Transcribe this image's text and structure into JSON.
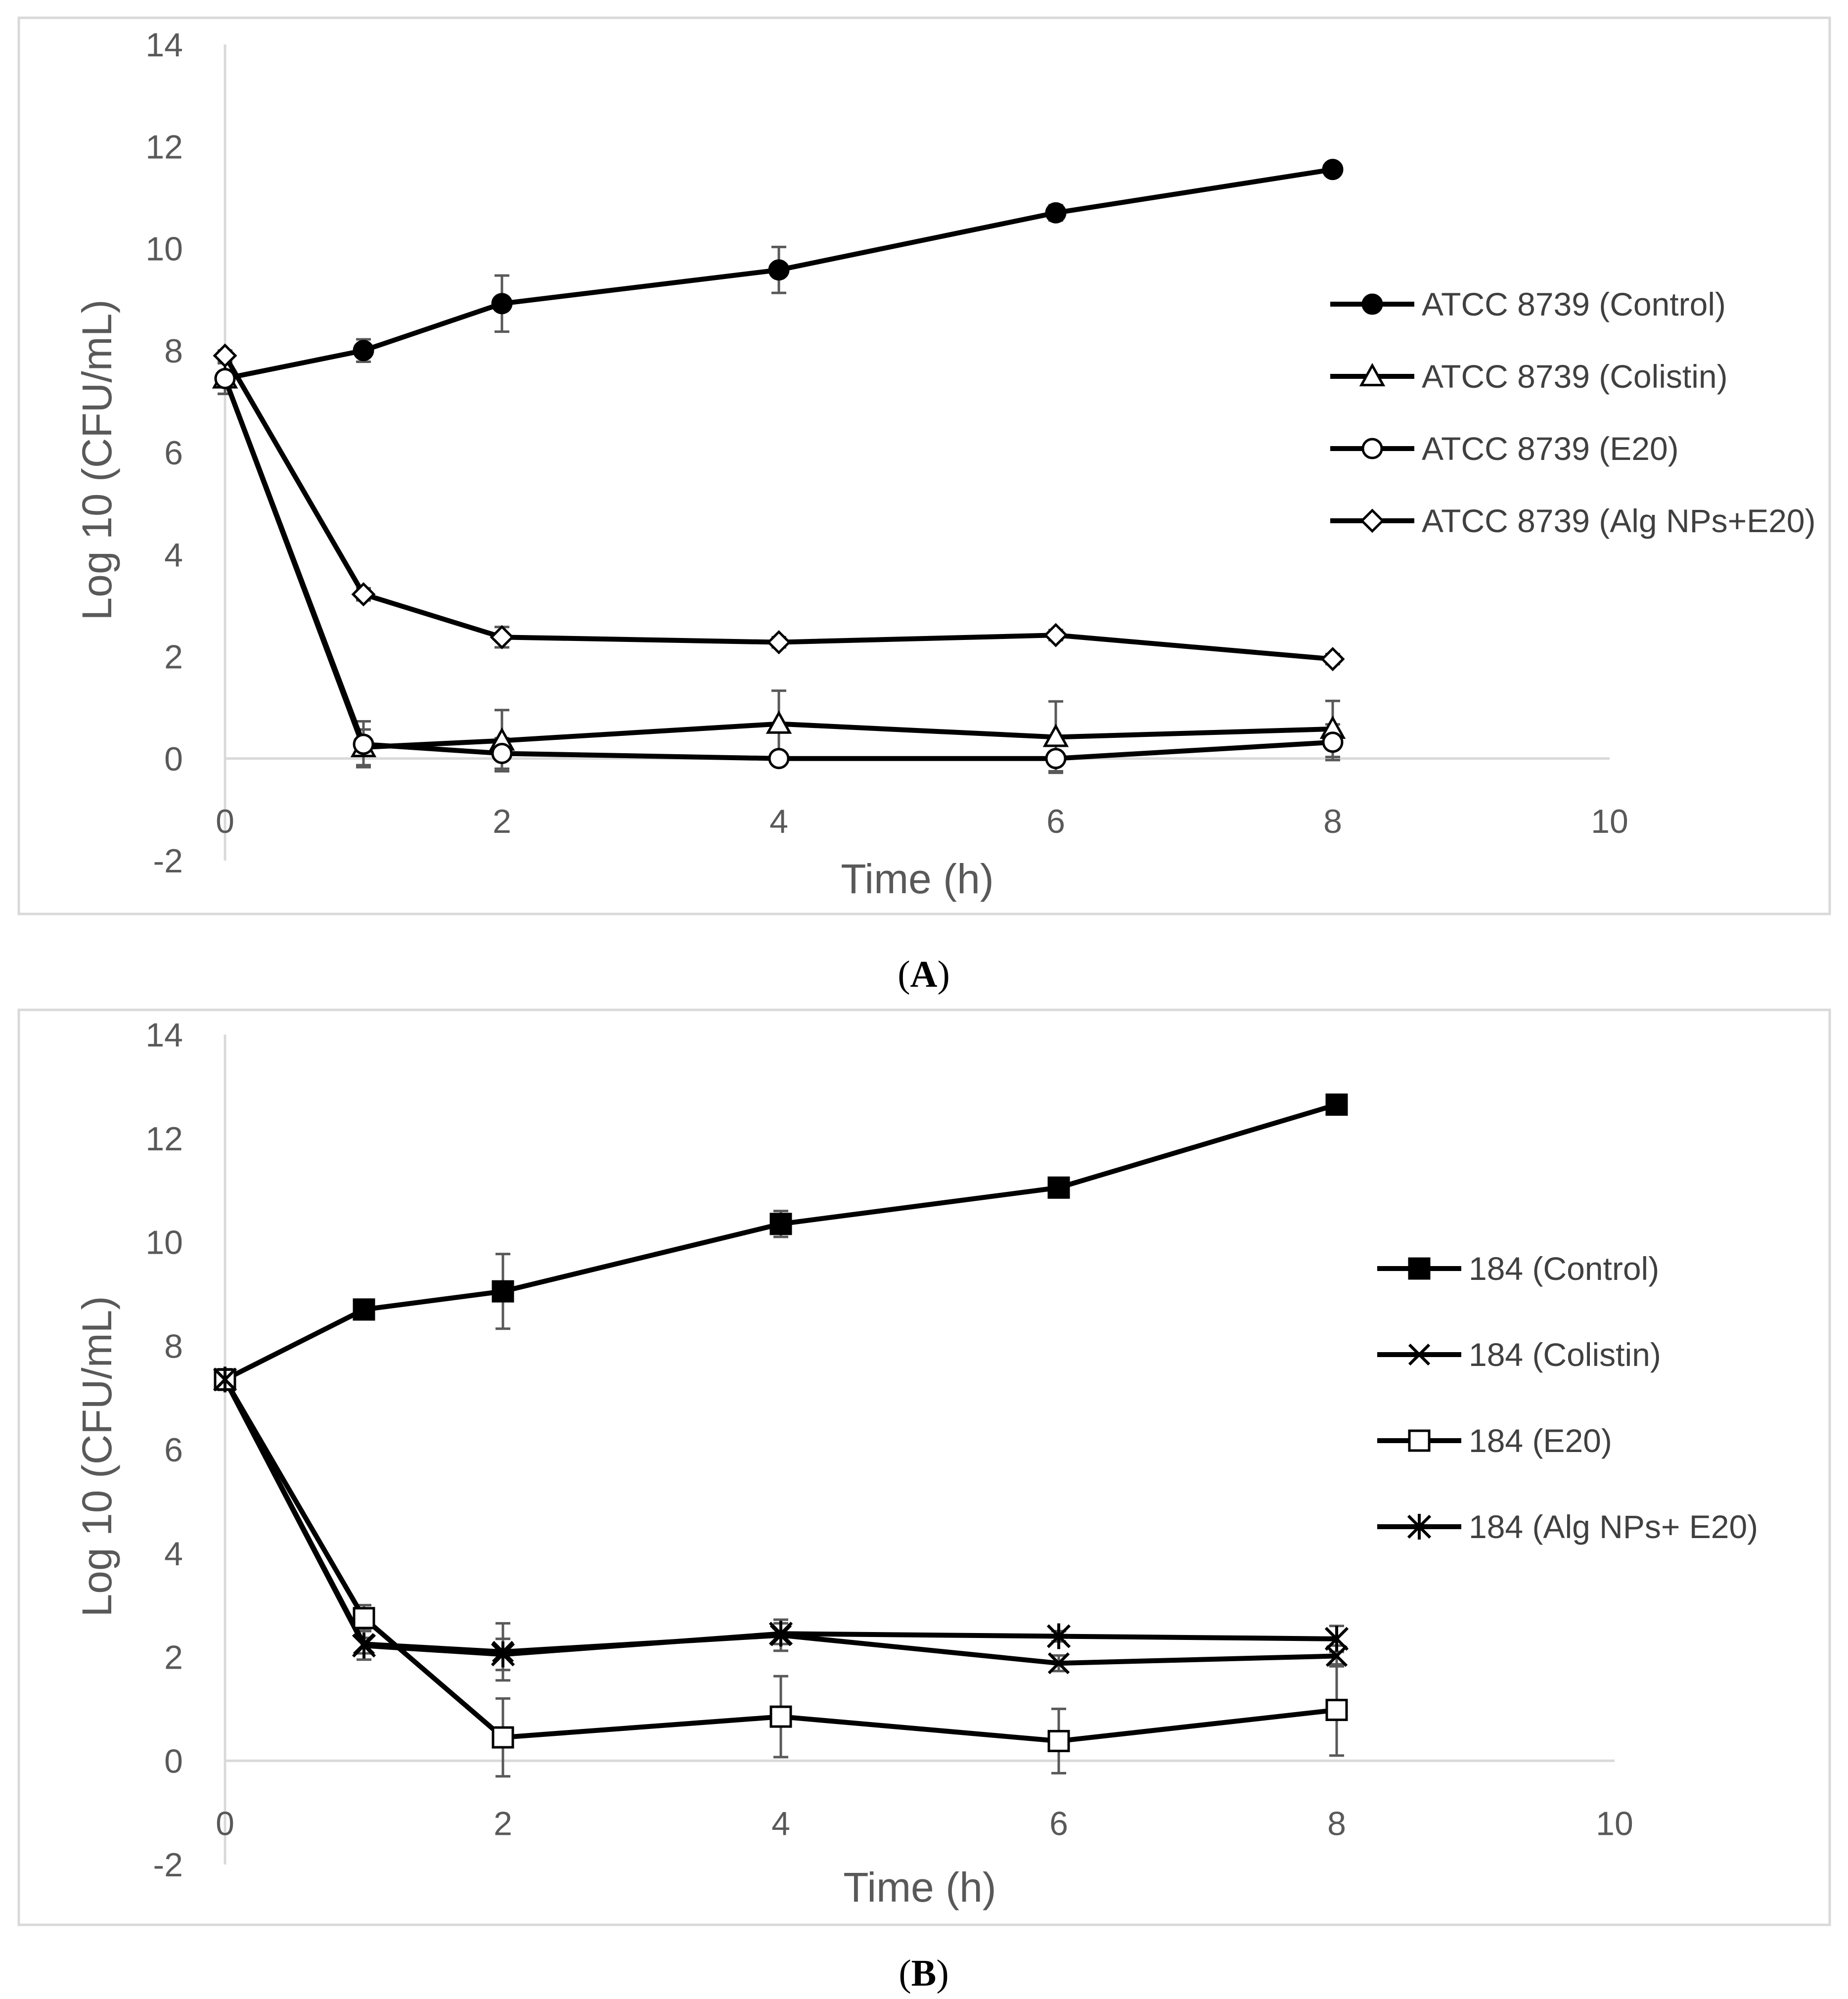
{
  "chart_data": [
    {
      "type": "line",
      "panel": "A",
      "caption_open": "(",
      "caption_label": "A",
      "caption_close": ")",
      "title": "",
      "xlabel": "Time (h)",
      "ylabel": "Log 10 (CFU/mL)",
      "xlim": [
        0,
        10
      ],
      "ylim": [
        -2,
        14
      ],
      "xticks": [
        0,
        2,
        4,
        6,
        8,
        10
      ],
      "yticks": [
        -2,
        0,
        2,
        4,
        6,
        8,
        10,
        12,
        14
      ],
      "legend_position": "right",
      "x": [
        0,
        1,
        2,
        4,
        6,
        8
      ],
      "series": [
        {
          "name": "ATCC 8739 (Control)",
          "marker": "filled-circle",
          "color": "#000000",
          "values": [
            7.45,
            8.0,
            8.92,
            9.58,
            10.7,
            11.55
          ],
          "errors": [
            0.3,
            0.22,
            0.55,
            0.45,
            0.15,
            0.0
          ]
        },
        {
          "name": "ATCC 8739 (Colistin)",
          "marker": "open-triangle",
          "color": "#000000",
          "values": [
            7.45,
            0.22,
            0.35,
            0.68,
            0.42,
            0.58
          ],
          "errors": [
            0.3,
            0.35,
            0.6,
            0.65,
            0.7,
            0.55
          ]
        },
        {
          "name": "ATCC 8739 (E20)",
          "marker": "open-circle",
          "color": "#000000",
          "values": [
            7.45,
            0.28,
            0.1,
            0.0,
            0.0,
            0.32
          ],
          "errors": [
            0.3,
            0.45,
            0.3,
            0.0,
            0.25,
            0.35
          ]
        },
        {
          "name": "ATCC 8739 (Alg NPs+E20)",
          "marker": "open-diamond",
          "color": "#000000",
          "values": [
            7.9,
            3.22,
            2.38,
            2.28,
            2.42,
            1.95
          ],
          "errors": [
            0.1,
            0.12,
            0.2,
            0.1,
            0.1,
            0.1
          ]
        }
      ]
    },
    {
      "type": "line",
      "panel": "B",
      "caption_open": "(",
      "caption_label": "B",
      "caption_close": ")",
      "title": "",
      "xlabel": "Time (h)",
      "ylabel": "Log 10 (CFU/mL)",
      "xlim": [
        0,
        10
      ],
      "ylim": [
        -2,
        14
      ],
      "xticks": [
        0,
        2,
        4,
        6,
        8,
        10
      ],
      "yticks": [
        -2,
        0,
        2,
        4,
        6,
        8,
        10,
        12,
        14
      ],
      "legend_position": "right",
      "x": [
        0,
        1,
        2,
        4,
        6,
        8
      ],
      "series": [
        {
          "name": "184 (Control)",
          "marker": "filled-square",
          "color": "#000000",
          "values": [
            7.35,
            8.7,
            9.05,
            10.35,
            11.05,
            12.65
          ],
          "errors": [
            0.2,
            0.12,
            0.72,
            0.25,
            0.1,
            0.05
          ]
        },
        {
          "name": "184 (Colistin)",
          "marker": "x",
          "color": "#000000",
          "values": [
            7.35,
            2.25,
            2.1,
            2.42,
            1.88,
            2.02
          ],
          "errors": [
            0.2,
            0.3,
            0.55,
            0.3,
            0.15,
            0.2
          ]
        },
        {
          "name": "184 (E20)",
          "marker": "open-square",
          "color": "#000000",
          "values": [
            7.35,
            2.75,
            0.45,
            0.85,
            0.38,
            0.98
          ],
          "errors": [
            0.2,
            0.25,
            0.75,
            0.78,
            0.62,
            0.88
          ]
        },
        {
          "name": "184 (Alg NPs+ E20)",
          "marker": "asterisk",
          "color": "#000000",
          "values": [
            7.35,
            2.22,
            2.05,
            2.45,
            2.4,
            2.35
          ],
          "errors": [
            0.2,
            0.15,
            0.3,
            0.2,
            0.1,
            0.25
          ]
        }
      ]
    }
  ]
}
